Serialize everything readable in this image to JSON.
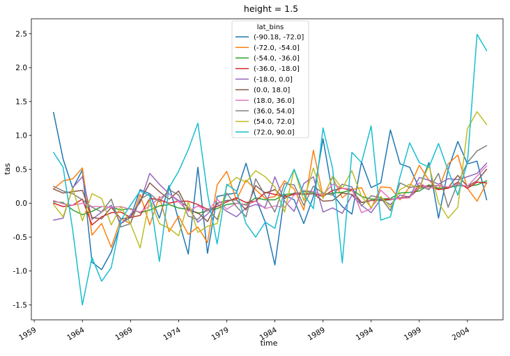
{
  "chart_data": {
    "type": "line",
    "title": "height = 1.5",
    "xlabel": "time",
    "ylabel": "tas",
    "xlim": [
      1958.7,
      2007.7
    ],
    "ylim": [
      -1.72,
      2.72
    ],
    "xticks": [
      1959,
      1964,
      1969,
      1974,
      1979,
      1984,
      1989,
      1994,
      1999,
      2004
    ],
    "yticks": [
      -1.5,
      -1.0,
      -0.5,
      0.0,
      0.5,
      1.0,
      1.5,
      2.0,
      2.5
    ],
    "ytick_labels": [
      "-1.5",
      "-1.0",
      "-0.5",
      "0.0",
      "0.5",
      "1.0",
      "1.5",
      "2.0",
      "2.5"
    ],
    "legend_title": "lat_bins",
    "legend_position": "top-center",
    "grid": false,
    "x": [
      1961,
      1962,
      1963,
      1964,
      1965,
      1966,
      1967,
      1968,
      1969,
      1970,
      1971,
      1972,
      1973,
      1974,
      1975,
      1976,
      1977,
      1978,
      1979,
      1980,
      1981,
      1982,
      1983,
      1984,
      1985,
      1986,
      1987,
      1988,
      1989,
      1990,
      1991,
      1992,
      1993,
      1994,
      1995,
      1996,
      1997,
      1998,
      1999,
      2000,
      2001,
      2002,
      2003,
      2004,
      2005,
      2006
    ],
    "series": [
      {
        "name": "(-90.18, -72.0]",
        "color": "#1f77b4",
        "values": [
          1.34,
          0.65,
          0.22,
          0.49,
          -0.87,
          -0.98,
          -0.72,
          -0.3,
          -0.21,
          0.2,
          0.14,
          -0.22,
          0.26,
          -0.25,
          -0.75,
          0.53,
          -0.74,
          0.1,
          0.13,
          0.15,
          0.59,
          0.08,
          -0.28,
          -0.91,
          0.12,
          0.05,
          -0.3,
          0.1,
          0.95,
          0.13,
          -0.05,
          -0.16,
          0.61,
          0.23,
          0.3,
          1.08,
          0.58,
          0.53,
          0.22,
          0.6,
          -0.22,
          0.5,
          0.91,
          0.58,
          0.62,
          0.05
        ]
      },
      {
        "name": "(-72.0, -54.0]",
        "color": "#ff7f0e",
        "values": [
          0.21,
          0.33,
          0.36,
          0.52,
          -0.47,
          -0.3,
          -0.65,
          -0.23,
          -0.3,
          0.13,
          -0.32,
          0.1,
          -0.42,
          -0.19,
          -0.46,
          -0.35,
          -0.58,
          0.27,
          0.47,
          0.05,
          0.34,
          0.2,
          0.07,
          0.1,
          0.33,
          0.21,
          -0.1,
          0.78,
          0.1,
          0.38,
          0.08,
          0.2,
          0.23,
          -0.08,
          0.24,
          0.23,
          0.05,
          0.24,
          0.56,
          0.34,
          0.2,
          0.58,
          0.71,
          0.22,
          0.03,
          0.3
        ]
      },
      {
        "name": "(-54.0, -36.0]",
        "color": "#2ca02c",
        "values": [
          0.02,
          0.01,
          -0.1,
          -0.17,
          -0.12,
          -0.05,
          -0.06,
          -0.1,
          -0.08,
          -0.14,
          -0.1,
          -0.04,
          -0.02,
          -0.07,
          -0.09,
          -0.15,
          -0.11,
          -0.08,
          -0.02,
          0.0,
          -0.02,
          0.08,
          0.05,
          0.05,
          0.13,
          0.14,
          0.17,
          0.16,
          0.12,
          0.15,
          0.16,
          0.2,
          0.1,
          0.06,
          0.06,
          0.07,
          0.15,
          0.16,
          0.18,
          0.27,
          0.22,
          0.23,
          0.26,
          0.25,
          0.27,
          0.33
        ]
      },
      {
        "name": "(-36.0, -18.0]",
        "color": "#d62728",
        "values": [
          0.0,
          -0.05,
          -0.03,
          0.06,
          -0.32,
          -0.2,
          -0.14,
          -0.13,
          -0.21,
          -0.18,
          0.07,
          0.05,
          0.0,
          0.03,
          0.03,
          -0.02,
          -0.09,
          -0.05,
          0.02,
          0.08,
          0.01,
          0.03,
          0.16,
          0.13,
          0.1,
          0.13,
          0.14,
          0.14,
          0.1,
          0.19,
          0.22,
          0.19,
          0.01,
          0.04,
          0.05,
          0.06,
          0.07,
          0.1,
          0.26,
          0.25,
          0.2,
          0.22,
          0.31,
          0.22,
          0.31,
          0.3
        ]
      },
      {
        "name": "(-18.0, 0.0]",
        "color": "#9467bd",
        "values": [
          -0.25,
          -0.22,
          0.23,
          0.39,
          -0.24,
          -0.13,
          -0.03,
          -0.3,
          -0.17,
          0.01,
          0.44,
          0.28,
          0.14,
          0.04,
          -0.06,
          -0.28,
          -0.16,
          -0.01,
          -0.12,
          -0.2,
          -0.07,
          -0.02,
          -0.06,
          0.39,
          0.03,
          -0.12,
          0.29,
          0.39,
          -0.13,
          -0.07,
          -0.15,
          0.12,
          -0.03,
          -0.14,
          0.06,
          -0.02,
          0.12,
          0.09,
          0.38,
          0.34,
          0.28,
          0.36,
          0.35,
          0.39,
          0.44,
          0.59
        ]
      },
      {
        "name": "(0.0, 18.0]",
        "color": "#8c564b",
        "values": [
          0.21,
          0.15,
          0.17,
          0.19,
          -0.21,
          -0.23,
          -0.06,
          -0.23,
          -0.21,
          0.03,
          0.3,
          0.17,
          0.06,
          0.18,
          -0.1,
          -0.14,
          -0.27,
          0.0,
          0.04,
          0.05,
          -0.1,
          0.26,
          0.15,
          0.2,
          0.07,
          0.15,
          0.13,
          0.14,
          0.03,
          0.04,
          0.15,
          0.13,
          0.01,
          0.04,
          0.04,
          0.05,
          0.08,
          0.09,
          0.22,
          0.25,
          0.26,
          0.23,
          0.41,
          0.25,
          0.33,
          0.5
        ]
      },
      {
        "name": "(18.0, 36.0]",
        "color": "#e377c2",
        "values": [
          0.04,
          -0.01,
          -0.03,
          0.0,
          -0.05,
          -0.05,
          -0.06,
          -0.05,
          -0.09,
          -0.13,
          -0.04,
          0.08,
          0.14,
          0.02,
          -0.12,
          -0.04,
          -0.12,
          0.06,
          -0.09,
          0.0,
          -0.03,
          0.03,
          -0.08,
          -0.04,
          -0.06,
          0.12,
          0.19,
          0.17,
          0.12,
          0.28,
          0.22,
          0.21,
          -0.14,
          -0.08,
          0.19,
          0.06,
          0.07,
          0.08,
          0.3,
          0.22,
          0.26,
          0.24,
          0.28,
          0.25,
          0.4,
          0.55
        ]
      },
      {
        "name": "(36.0, 54.0]",
        "color": "#7f7f7f",
        "values": [
          0.25,
          0.18,
          0.14,
          0.05,
          -0.06,
          -0.13,
          0.06,
          -0.35,
          -0.3,
          0.06,
          0.14,
          0.02,
          0.2,
          0.12,
          -0.19,
          -0.24,
          -0.08,
          -0.24,
          0.15,
          -0.05,
          -0.2,
          0.36,
          0.11,
          -0.13,
          0.29,
          0.27,
          -0.03,
          0.25,
          0.15,
          0.12,
          0.28,
          0.24,
          -0.04,
          0.11,
          0.08,
          -0.11,
          0.3,
          0.23,
          0.26,
          0.2,
          0.44,
          -0.06,
          0.3,
          0.6,
          0.77,
          0.85
        ]
      },
      {
        "name": "(54.0, 72.0]",
        "color": "#bcbd22",
        "values": [
          -0.02,
          -0.2,
          0.22,
          -0.26,
          0.14,
          0.07,
          -0.32,
          -0.05,
          -0.3,
          -0.66,
          0.06,
          -0.3,
          -0.37,
          -0.48,
          0.02,
          -0.43,
          -0.34,
          -0.3,
          0.25,
          0.38,
          0.31,
          0.48,
          0.39,
          0.24,
          -0.13,
          0.5,
          0.04,
          0.52,
          0.07,
          0.4,
          0.22,
          0.48,
          0.1,
          -0.06,
          0.1,
          -0.06,
          0.2,
          0.28,
          0.22,
          0.56,
          0.01,
          -0.22,
          -0.06,
          1.1,
          1.35,
          1.16
        ]
      },
      {
        "name": "(72.0, 90.0]",
        "color": "#17becf",
        "values": [
          0.75,
          0.53,
          -0.4,
          -1.5,
          -0.8,
          -1.15,
          -0.95,
          -0.25,
          -0.03,
          0.18,
          0.11,
          -0.86,
          0.23,
          0.47,
          0.79,
          1.18,
          0.14,
          -0.6,
          0.28,
          0.18,
          -0.3,
          -0.5,
          -0.28,
          -0.37,
          0.2,
          0.5,
          0.13,
          -0.08,
          1.11,
          0.51,
          -0.88,
          0.75,
          0.6,
          1.14,
          -0.25,
          -0.2,
          0.39,
          0.89,
          0.6,
          0.53,
          0.88,
          0.48,
          0.12,
          0.6,
          2.49,
          2.25
        ]
      }
    ]
  }
}
